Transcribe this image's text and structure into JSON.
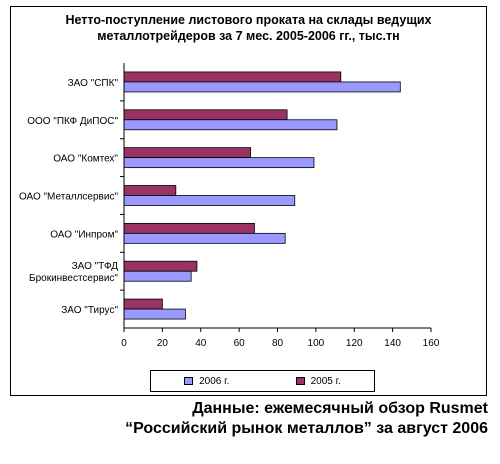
{
  "chart_data": {
    "type": "bar",
    "orientation": "horizontal",
    "title_lines": [
      "Нетто-поступление листового проката на склады ведущих",
      "металлотрейдеров за 7 мес. 2005-2006 гг., тыс.тн"
    ],
    "categories": [
      "ЗАО \"СПК\"",
      "ООО \"ПКФ ДиПОС\"",
      "ОАО \"Комтех\"",
      "ОАО \"Металлсервис\"",
      "ОАО \"Инпром\"",
      "ЗАО \"ТФД Брокинвестсервис\"",
      "ЗАО \"Тирус\""
    ],
    "category_label_lines": [
      [
        "ЗАО \"СПК\""
      ],
      [
        "ООО \"ПКФ ДиПОС\""
      ],
      [
        "ОАО \"Комтех\""
      ],
      [
        "ОАО \"Металлсервис\""
      ],
      [
        "ОАО \"Инпром\""
      ],
      [
        "ЗАО \"ТФД",
        "Брокинвестсервис\""
      ],
      [
        "ЗАО \"Тирус\""
      ]
    ],
    "series": [
      {
        "name": "2005 г.",
        "color": "#993366",
        "values": [
          113,
          85,
          66,
          27,
          68,
          38,
          20
        ]
      },
      {
        "name": "2006 г.",
        "color": "#9999ff",
        "values": [
          144,
          111,
          99,
          89,
          84,
          35,
          32
        ]
      }
    ],
    "xlim": [
      0,
      160
    ],
    "xticks": [
      0,
      20,
      40,
      60,
      80,
      100,
      120,
      140,
      160
    ],
    "grid": false,
    "legend_position": "bottom",
    "legend_order": [
      "2006 г.",
      "2005 г."
    ]
  },
  "source": {
    "line1": "Данные: ежемесячный обзор Rusmet",
    "line2": "“Российский рынок металлов” за август 2006"
  }
}
